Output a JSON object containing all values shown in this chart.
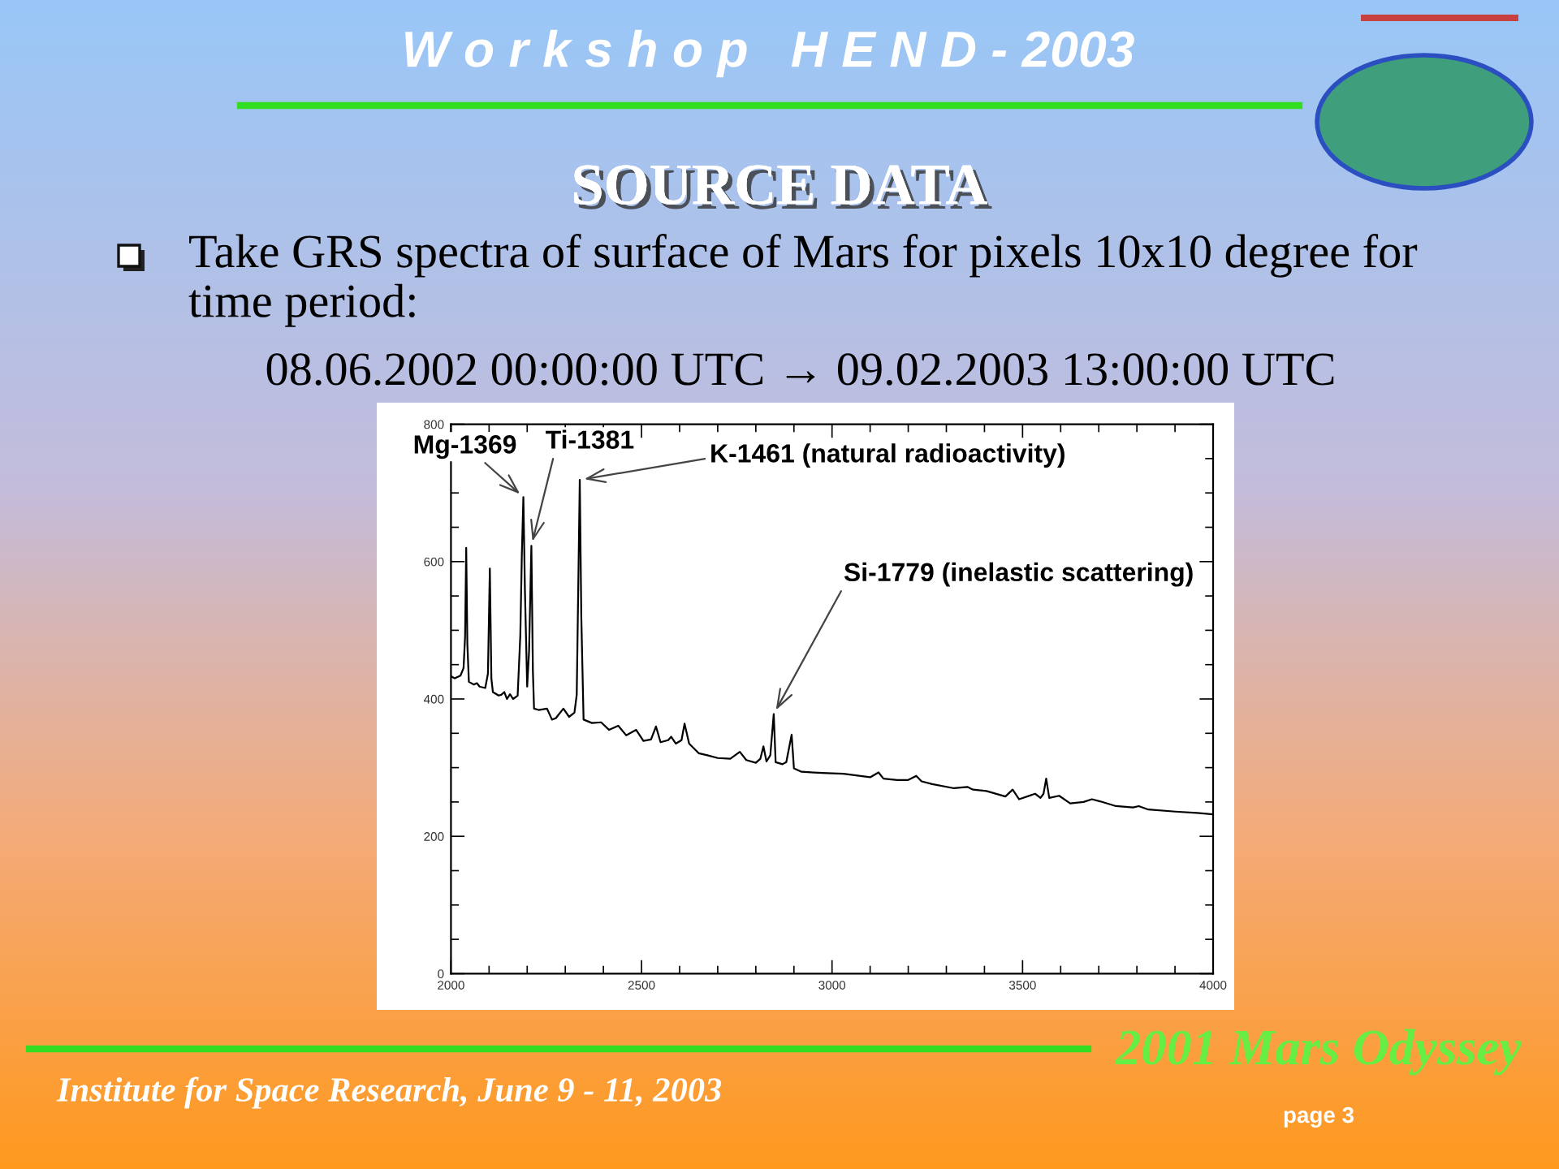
{
  "chart_data": {
    "type": "line",
    "title": "SOURCE DATA",
    "subtitle": "Take GRS spectra of surface of Mars for pixels 10x10 degree for\ntime period:",
    "annotations": [
      "W o r k s h o p   H E N D - 2003",
      "08.06.2002 00:00:00 UTC → 09.02.2003 13:00:00 UTC",
      {
        "text": "Mg-1369",
        "x": 2190,
        "y": 694
      },
      {
        "text": "Ti-1381",
        "x": 2211,
        "y": 623
      },
      {
        "text": "K-1461 (natural radioactivity)",
        "x": 2338,
        "y": 719
      },
      {
        "text": "Si-1779 (inelastic scattering)",
        "x": 2847,
        "y": 378
      },
      "2001 Mars Odyssey",
      "Institute for Space Research, June 9 - 11, 2003",
      "page 3"
    ],
    "color": "#000000",
    "x": [
      2000,
      2010,
      2025,
      2033,
      2037,
      2040,
      2043,
      2047,
      2060,
      2068,
      2075,
      2090,
      2097,
      2102,
      2106,
      2110,
      2125,
      2132,
      2140,
      2147,
      2155,
      2163,
      2175,
      2182,
      2186,
      2190,
      2194,
      2200,
      2205,
      2211,
      2215,
      2218,
      2230,
      2252,
      2265,
      2275,
      2295,
      2310,
      2324,
      2330,
      2335,
      2338,
      2342,
      2348,
      2370,
      2394,
      2415,
      2439,
      2460,
      2486,
      2505,
      2525,
      2538,
      2550,
      2570,
      2578,
      2590,
      2605,
      2613,
      2625,
      2650,
      2673,
      2700,
      2733,
      2758,
      2775,
      2800,
      2812,
      2820,
      2828,
      2838,
      2847,
      2852,
      2870,
      2880,
      2894,
      2900,
      2920,
      2953,
      2987,
      3030,
      3100,
      3122,
      3135,
      3171,
      3200,
      3221,
      3235,
      3263,
      3320,
      3355,
      3370,
      3405,
      3455,
      3474,
      3491,
      3533,
      3547,
      3555,
      3562,
      3570,
      3596,
      3625,
      3660,
      3682,
      3703,
      3745,
      3790,
      3805,
      3830,
      3901,
      3958,
      4000
    ],
    "values": [
      433,
      430,
      434,
      445,
      490,
      620,
      480,
      425,
      421,
      423,
      418,
      416,
      437,
      590,
      430,
      410,
      405,
      406,
      410,
      400,
      407,
      400,
      405,
      493,
      611,
      694,
      560,
      418,
      470,
      623,
      440,
      386,
      384,
      386,
      370,
      372,
      386,
      374,
      380,
      406,
      600,
      719,
      520,
      370,
      365,
      366,
      355,
      361,
      347,
      355,
      339,
      341,
      360,
      337,
      340,
      345,
      335,
      340,
      364,
      335,
      321,
      318,
      314,
      313,
      323,
      311,
      307,
      313,
      331,
      309,
      318,
      378,
      308,
      305,
      308,
      348,
      299,
      294,
      293,
      292,
      291,
      286,
      293,
      284,
      282,
      282,
      288,
      280,
      276,
      270,
      272,
      268,
      266,
      258,
      268,
      254,
      262,
      256,
      262,
      284,
      256,
      259,
      248,
      250,
      254,
      251,
      244,
      242,
      244,
      239,
      236,
      234,
      232
    ],
    "xlim": [
      2000,
      4000
    ],
    "xticks": [
      2000,
      {
        "value": 2100,
        "label": null
      },
      {
        "value": 2200,
        "label": null
      },
      {
        "value": 2300,
        "label": null
      },
      {
        "value": 2400,
        "label": null
      },
      2500,
      {
        "value": 2600,
        "label": null
      },
      {
        "value": 2700,
        "label": null
      },
      {
        "value": 2800,
        "label": null
      },
      {
        "value": 2900,
        "label": null
      },
      3000,
      {
        "value": 3100,
        "label": null
      },
      {
        "value": 3200,
        "label": null
      },
      {
        "value": 3300,
        "label": null
      },
      {
        "value": 3400,
        "label": null
      },
      3500,
      {
        "value": 3600,
        "label": null
      },
      {
        "value": 3700,
        "label": null
      },
      {
        "value": 3800,
        "label": null
      },
      {
        "value": 3900,
        "label": null
      },
      4000
    ],
    "ylim": [
      0,
      800
    ],
    "yticks": [
      0,
      {
        "value": 50,
        "label": null
      },
      {
        "value": 100,
        "label": null
      },
      {
        "value": 150,
        "label": null
      },
      200,
      {
        "value": 250,
        "label": null
      },
      {
        "value": 300,
        "label": null
      },
      {
        "value": 350,
        "label": null
      },
      400,
      {
        "value": 450,
        "label": null
      },
      {
        "value": 500,
        "label": null
      },
      {
        "value": 550,
        "label": null
      },
      600,
      {
        "value": 650,
        "label": null
      },
      {
        "value": 700,
        "label": null
      },
      {
        "value": 750,
        "label": null
      },
      800
    ]
  }
}
